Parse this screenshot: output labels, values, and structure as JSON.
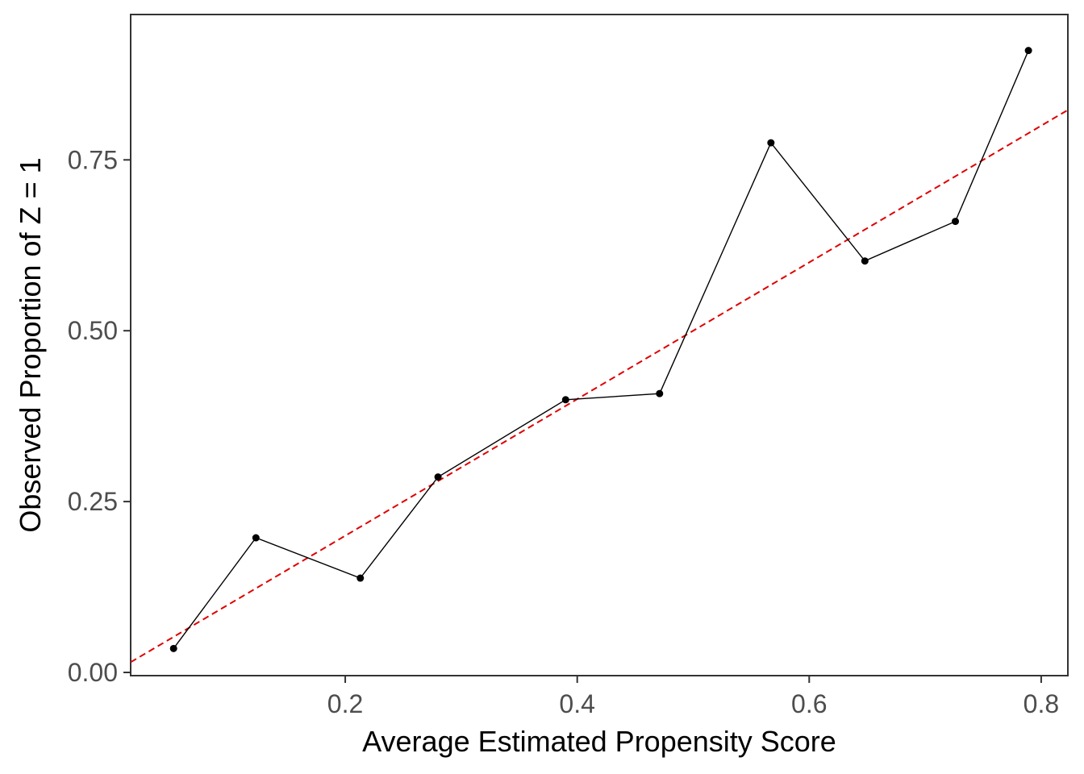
{
  "chart_data": {
    "type": "line",
    "title": "",
    "xlabel": "Average Estimated Propensity Score",
    "ylabel": "Observed Proportion of Z = 1",
    "xlim": [
      0.015,
      0.823
    ],
    "ylim": [
      -0.0047,
      0.9627
    ],
    "x_ticks": [
      0.2,
      0.4,
      0.6,
      0.8
    ],
    "x_tick_labels": [
      "0.2",
      "0.4",
      "0.6",
      "0.8"
    ],
    "y_ticks": [
      0.0,
      0.25,
      0.5,
      0.75
    ],
    "y_tick_labels": [
      "0.00",
      "0.25",
      "0.50",
      "0.75"
    ],
    "grid": false,
    "series": [
      {
        "color": "#000000",
        "style": "solid line with points",
        "x": [
          0.052,
          0.123,
          0.213,
          0.28,
          0.39,
          0.471,
          0.567,
          0.648,
          0.726,
          0.789
        ],
        "y": [
          0.035,
          0.197,
          0.138,
          0.286,
          0.399,
          0.408,
          0.775,
          0.602,
          0.66,
          0.91
        ]
      }
    ],
    "reference_line": {
      "color": "#e00000",
      "style": "dashed",
      "slope": 1,
      "intercept": 0
    }
  }
}
